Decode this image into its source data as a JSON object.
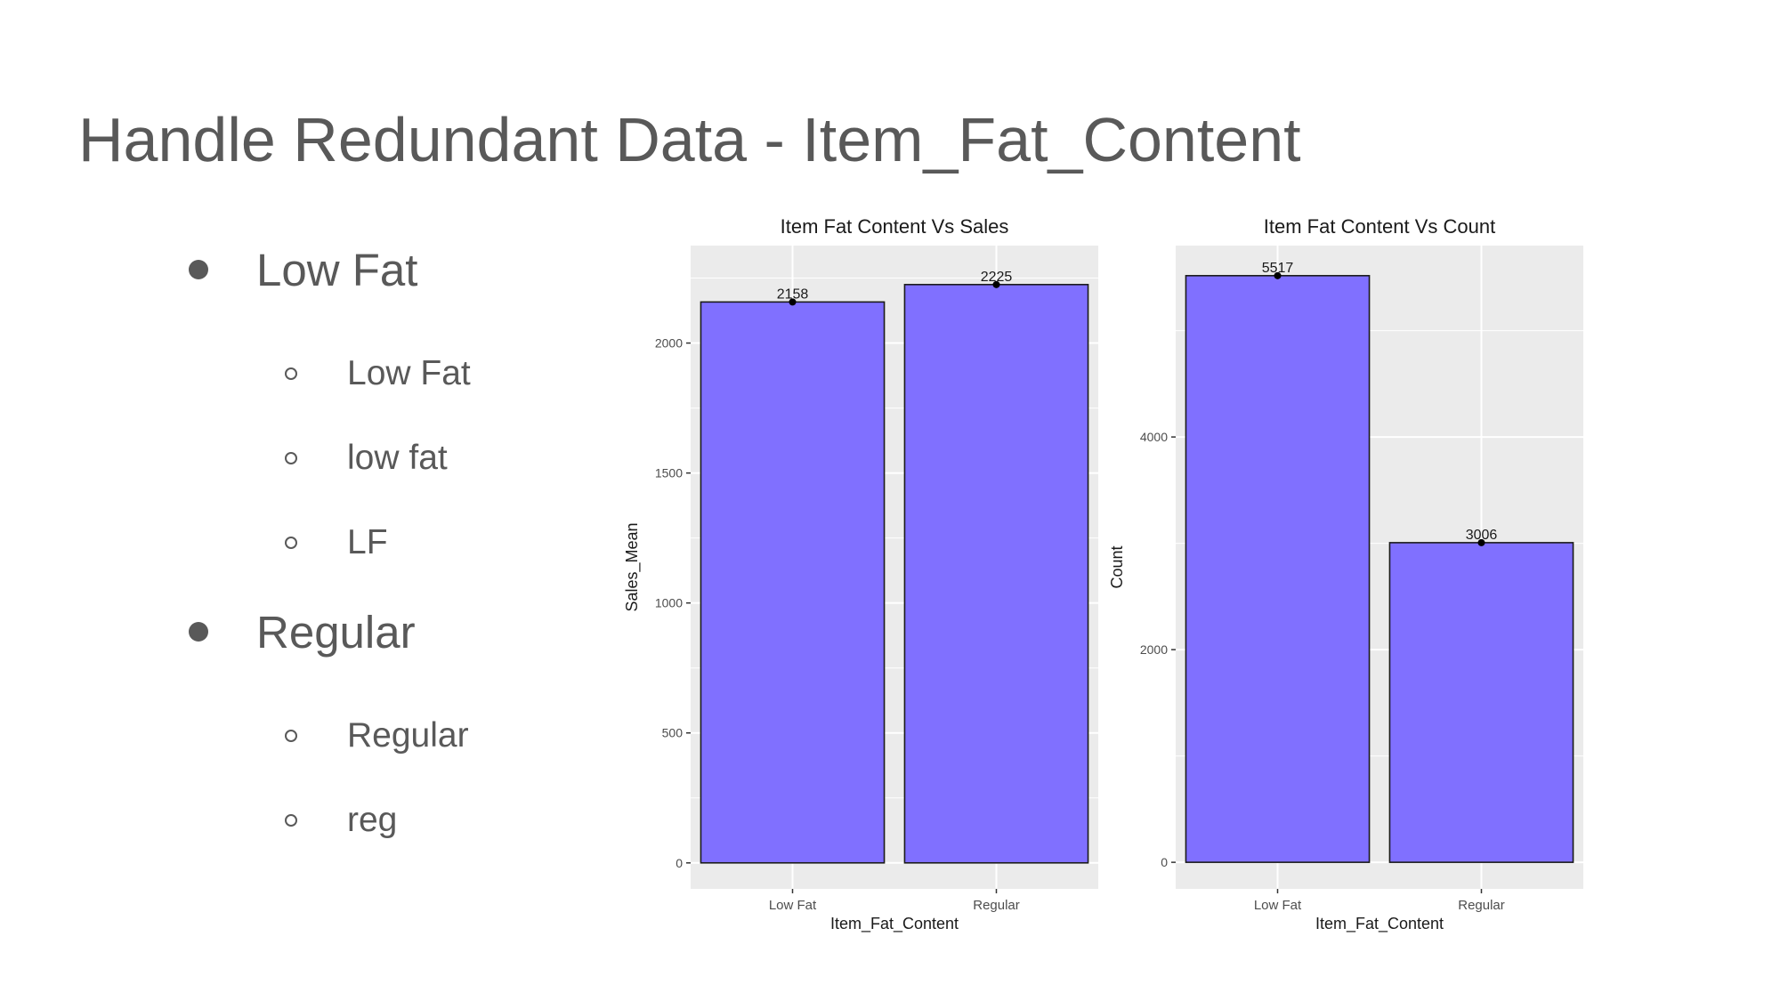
{
  "slide": {
    "title": "Handle Redundant Data - Item_Fat_Content"
  },
  "bullets": [
    {
      "label": "Low Fat",
      "children": [
        "Low Fat",
        "low fat",
        "LF"
      ]
    },
    {
      "label": "Regular",
      "children": [
        "Regular",
        "reg"
      ]
    }
  ],
  "colors": {
    "bar_fill": "#8070FF",
    "panel_bg": "#EBEBEB",
    "grid": "#FFFFFF",
    "text": "#595959"
  },
  "chart_data": [
    {
      "type": "bar",
      "title": "Item Fat Content Vs Sales",
      "xlabel": "Item_Fat_Content",
      "ylabel": "Sales_Mean",
      "categories": [
        "Low Fat",
        "Regular"
      ],
      "values": [
        2158,
        2225
      ],
      "data_labels": [
        "2158",
        "2225"
      ],
      "ylim": [
        -100,
        2375
      ],
      "yticks": [
        0,
        500,
        1000,
        1500,
        2000
      ],
      "ytick_labels": [
        "0",
        "500",
        "1000",
        "1500",
        "2000"
      ],
      "grid": true
    },
    {
      "type": "bar",
      "title": "Item Fat Content Vs Count",
      "xlabel": "Item_Fat_Content",
      "ylabel": "Count",
      "categories": [
        "Low Fat",
        "Regular"
      ],
      "values": [
        5517,
        3006
      ],
      "data_labels": [
        "5517",
        "3006"
      ],
      "ylim": [
        -250,
        5800
      ],
      "yticks": [
        0,
        2000,
        4000
      ],
      "ytick_labels": [
        "0",
        "2000",
        "4000"
      ],
      "grid": true
    }
  ]
}
